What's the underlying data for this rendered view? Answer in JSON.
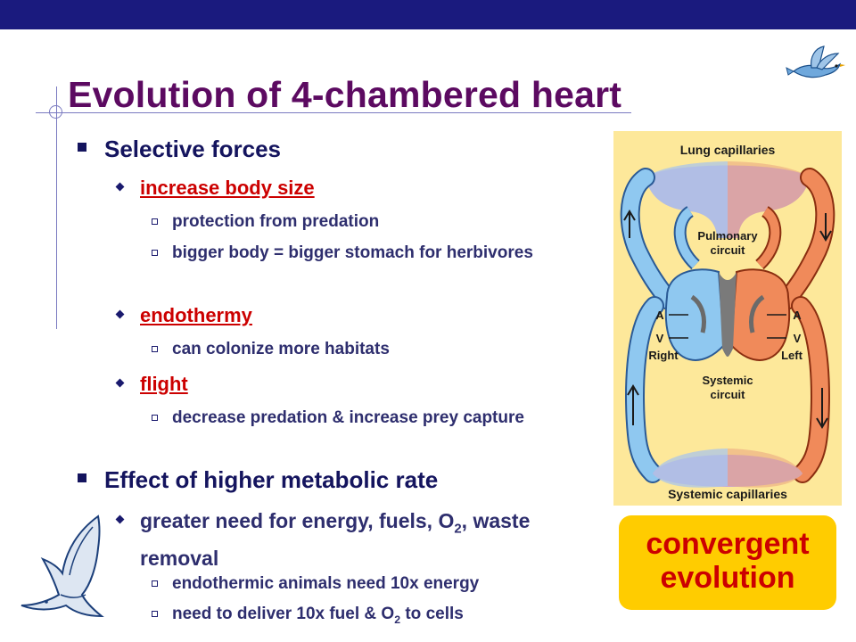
{
  "title": "Evolution of 4-chambered heart",
  "bullets": {
    "b1": "Selective forces",
    "b1_1": "increase body size",
    "b1_1_1": "protection from predation",
    "b1_1_2": "bigger body = bigger stomach for herbivores",
    "b1_2": "endothermy",
    "b1_2_1": "can colonize more habitats",
    "b1_3": "flight",
    "b1_3_1": "decrease predation & increase prey capture",
    "b2": "Effect of higher metabolic rate",
    "b2_1_pre": "greater need for energy, fuels, O",
    "b2_1_sub": "2",
    "b2_1_post": ", waste removal",
    "b2_1_1": "endothermic animals need 10x energy",
    "b2_1_2_pre": "need to deliver 10x fuel & O",
    "b2_1_2_sub": "2",
    "b2_1_2_post": " to cells"
  },
  "diagram": {
    "lung_capillaries": "Lung capillaries",
    "pulmonary_1": "Pulmonary",
    "pulmonary_2": "circuit",
    "a_left": "A",
    "v_left": "V",
    "right": "Right",
    "a_right": "A",
    "v_right": "V",
    "left": "Left",
    "systemic_1": "Systemic",
    "systemic_2": "circuit",
    "systemic_capillaries": "Systemic capillaries"
  },
  "callout": {
    "line1": "convergent",
    "line2": "evolution"
  },
  "colors": {
    "title": "#5c0a61",
    "header_bar": "#1a1a7e",
    "highlight": "#cc0000",
    "callout_bg": "#ffcc00",
    "diagram_bg": "#fde89a",
    "oxygen_poor": "#8fc8f0",
    "oxygen_rich": "#f08a5a"
  }
}
